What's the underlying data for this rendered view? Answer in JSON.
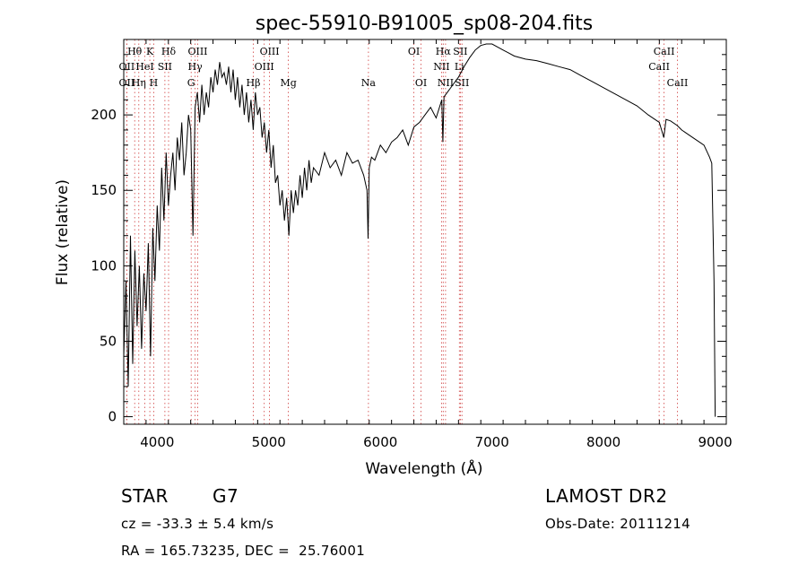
{
  "chart_data": {
    "type": "line",
    "title": "spec-55910-B91005_sp08-204.fits",
    "xlabel": "Wavelength (Å)",
    "ylabel": "Flux (relative)",
    "xlim": [
      3700,
      9100
    ],
    "ylim": [
      -5,
      250
    ],
    "xticks": [
      4000,
      5000,
      6000,
      7000,
      8000,
      9000
    ],
    "yticks": [
      0,
      50,
      100,
      150,
      200
    ],
    "series": [
      {
        "x": [
          3700,
          3720,
          3740,
          3760,
          3780,
          3800,
          3820,
          3840,
          3860,
          3880,
          3900,
          3920,
          3940,
          3960,
          3980,
          4000,
          4020,
          4040,
          4060,
          4080,
          4100,
          4120,
          4140,
          4160,
          4180,
          4200,
          4220,
          4240,
          4260,
          4280,
          4300,
          4320,
          4340,
          4360,
          4380,
          4400,
          4420,
          4440,
          4460,
          4480,
          4500,
          4520,
          4540,
          4560,
          4580,
          4600,
          4620,
          4640,
          4660,
          4680,
          4700,
          4720,
          4740,
          4760,
          4780,
          4800,
          4820,
          4840,
          4860,
          4880,
          4900,
          4920,
          4940,
          4960,
          4980,
          5000,
          5020,
          5040,
          5060,
          5080,
          5100,
          5120,
          5140,
          5160,
          5180,
          5200,
          5220,
          5240,
          5260,
          5280,
          5300,
          5320,
          5340,
          5360,
          5380,
          5400,
          5450,
          5500,
          5550,
          5600,
          5650,
          5700,
          5750,
          5800,
          5850,
          5880,
          5890,
          5900,
          5920,
          5950,
          6000,
          6050,
          6100,
          6150,
          6200,
          6250,
          6300,
          6350,
          6400,
          6450,
          6500,
          6550,
          6560,
          6570,
          6600,
          6650,
          6700,
          6750,
          6800,
          6850,
          6900,
          6950,
          7000,
          7050,
          7100,
          7150,
          7200,
          7300,
          7400,
          7500,
          7600,
          7700,
          7800,
          7900,
          8000,
          8100,
          8200,
          8300,
          8400,
          8500,
          8540,
          8560,
          8600,
          8660,
          8700,
          8800,
          8900,
          8950,
          8970,
          8990,
          9000
        ],
        "values": [
          40,
          90,
          20,
          120,
          35,
          110,
          60,
          100,
          45,
          95,
          70,
          115,
          40,
          125,
          90,
          140,
          110,
          165,
          130,
          175,
          140,
          160,
          175,
          150,
          185,
          170,
          195,
          160,
          175,
          200,
          190,
          120,
          205,
          215,
          195,
          220,
          200,
          215,
          205,
          225,
          215,
          230,
          220,
          235,
          225,
          228,
          220,
          232,
          215,
          230,
          210,
          225,
          205,
          220,
          200,
          215,
          195,
          210,
          190,
          215,
          200,
          205,
          185,
          195,
          175,
          190,
          165,
          180,
          155,
          160,
          140,
          150,
          130,
          145,
          120,
          150,
          135,
          150,
          140,
          160,
          145,
          165,
          150,
          170,
          155,
          165,
          160,
          175,
          165,
          170,
          160,
          175,
          168,
          170,
          160,
          150,
          118,
          165,
          172,
          170,
          180,
          175,
          182,
          185,
          190,
          180,
          192,
          195,
          200,
          205,
          198,
          210,
          182,
          212,
          215,
          220,
          225,
          232,
          238,
          243,
          246,
          247,
          247,
          245,
          243,
          241,
          239,
          237,
          236,
          234,
          232,
          230,
          226,
          222,
          218,
          214,
          210,
          206,
          200,
          195,
          185,
          197,
          196,
          193,
          190,
          185,
          180,
          172,
          168,
          90,
          0
        ]
      }
    ],
    "lines": [
      {
        "label": "Hθ",
        "x": 3798
      },
      {
        "label": "K",
        "x": 3934
      },
      {
        "label": "Hδ",
        "x": 4102
      },
      {
        "label": "OIII",
        "x": 4363
      },
      {
        "label": "OIII",
        "x": 5007
      },
      {
        "label": "OI",
        "x": 6300
      },
      {
        "label": "Hα",
        "x": 6563
      },
      {
        "label": "SII",
        "x": 6717
      },
      {
        "label": "CaII",
        "x": 8542
      },
      {
        "label": "OII",
        "x": 3727
      },
      {
        "label": "HeI",
        "x": 3889
      },
      {
        "label": "SII",
        "x": 4069
      },
      {
        "label": "Hγ",
        "x": 4340
      },
      {
        "label": "OIII",
        "x": 4959
      },
      {
        "label": "NII",
        "x": 6548
      },
      {
        "label": "Li",
        "x": 6708
      },
      {
        "label": "CaII",
        "x": 8498
      },
      {
        "label": "OII",
        "x": 3727
      },
      {
        "label": "Hη",
        "x": 3835
      },
      {
        "label": "H",
        "x": 3968
      },
      {
        "label": "G",
        "x": 4304
      },
      {
        "label": "Hβ",
        "x": 4861
      },
      {
        "label": "Mg",
        "x": 5175
      },
      {
        "label": "Na",
        "x": 5893
      },
      {
        "label": "OI",
        "x": 6364
      },
      {
        "label": "NII",
        "x": 6584
      },
      {
        "label": "SII",
        "x": 6731
      },
      {
        "label": "CaII",
        "x": 8662
      }
    ]
  },
  "info": {
    "object_type": "STAR",
    "subclass": "G7",
    "survey": "LAMOST DR2",
    "cz": "cz = -33.3 ± 5.4 km/s",
    "obs_date": "Obs-Date: 20111214",
    "coords": "RA = 165.73235, DEC =  25.76001"
  },
  "colors": {
    "spectrum": "#000000",
    "line_markers": "#d04040"
  }
}
